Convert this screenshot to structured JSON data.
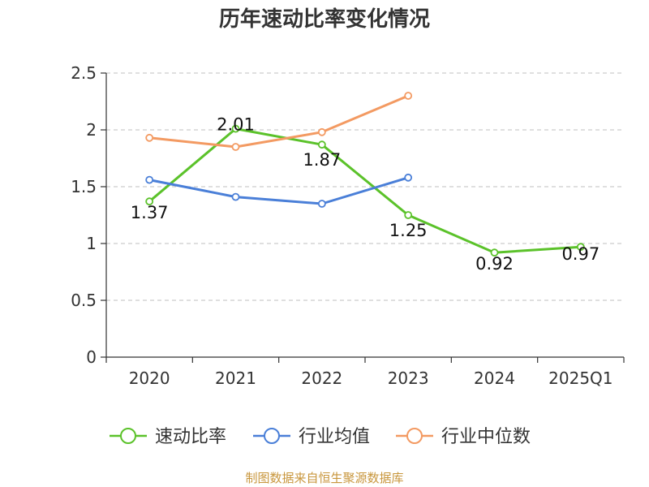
{
  "chart_data": {
    "type": "line",
    "title": "历年速动比率变化情况",
    "categories": [
      "2020",
      "2021",
      "2022",
      "2023",
      "2024",
      "2025Q1"
    ],
    "ylim": [
      0,
      2.5
    ],
    "yticks": [
      0,
      0.5,
      1,
      1.5,
      2,
      2.5
    ],
    "ytick_labels": [
      "0",
      "0.5",
      "1",
      "1.5",
      "2",
      "2.5"
    ],
    "grid": true,
    "legend_position": "bottom",
    "series": [
      {
        "name": "速动比率",
        "color": "#5bc22a",
        "values": [
          1.37,
          2.01,
          1.87,
          1.25,
          0.92,
          0.97
        ],
        "labels": [
          "1.37",
          "2.01",
          "1.87",
          "1.25",
          "0.92",
          "0.97"
        ]
      },
      {
        "name": "行业均值",
        "color": "#4a7fd8",
        "values": [
          1.56,
          1.41,
          1.35,
          1.58,
          null,
          null
        ]
      },
      {
        "name": "行业中位数",
        "color": "#f39a62",
        "values": [
          1.93,
          1.85,
          1.98,
          2.3,
          null,
          null
        ]
      }
    ]
  },
  "footer": {
    "source": "制图数据来自恒生聚源数据库"
  }
}
